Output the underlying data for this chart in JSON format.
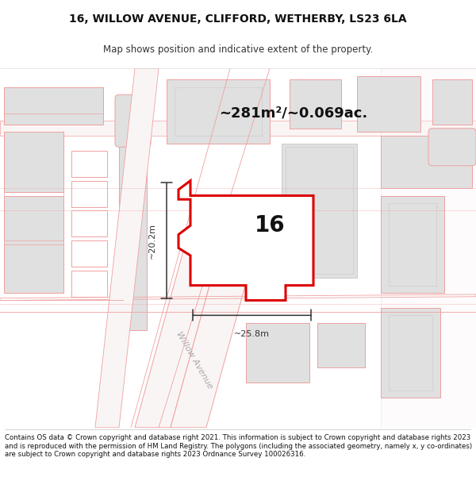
{
  "title_line1": "16, WILLOW AVENUE, CLIFFORD, WETHERBY, LS23 6LA",
  "title_line2": "Map shows position and indicative extent of the property.",
  "footer": "Contains OS data © Crown copyright and database right 2021. This information is subject to Crown copyright and database rights 2023 and is reproduced with the permission of HM Land Registry. The polygons (including the associated geometry, namely x, y co-ordinates) are subject to Crown copyright and database rights 2023 Ordnance Survey 100026316.",
  "property_label": "16",
  "area_label": "~281m²/~0.069ac.",
  "dim_height": "~20.2m",
  "dim_width": "~25.8m",
  "road_label": "Willow Avenue",
  "bg_color": "#ffffff",
  "map_bg": "#ffffff",
  "building_fill": "#e0e0e0",
  "building_edge": "#f0a0a0",
  "road_outline": "#f0a0a0",
  "property_fill": "#ffffff",
  "property_edge": "#dd0000",
  "property_lw": 2.2,
  "dim_color": "#333333",
  "title_fs": 10,
  "sub_fs": 8.5,
  "label_fs": 20,
  "area_fs": 13,
  "dim_fs": 8,
  "road_fs": 8,
  "foot_fs": 6.2
}
